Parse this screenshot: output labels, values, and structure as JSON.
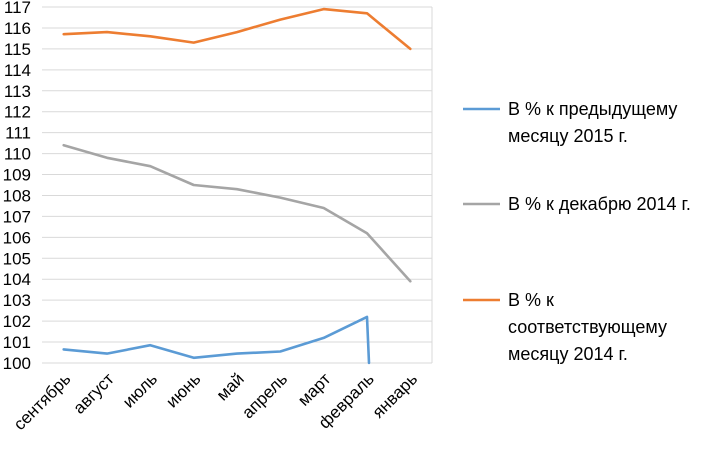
{
  "chart_data": {
    "type": "line",
    "title": "",
    "xlabel": "",
    "ylabel": "",
    "categories": [
      "сентябрь",
      "август",
      "июль",
      "июнь",
      "май",
      "апрель",
      "март",
      "февраль",
      "январь"
    ],
    "ylim": [
      100,
      117
    ],
    "ytick_step": 1,
    "grid": true,
    "legend_position": "right",
    "series": [
      {
        "name_lines": [
          "В % к предыдущему",
          "месяцу 2015 г."
        ],
        "color": "#5b9bd5",
        "values": [
          100.65,
          100.45,
          100.85,
          100.25,
          100.45,
          100.55,
          101.2,
          102.2,
          null
        ],
        "drop_after": {
          "index": 7,
          "to": 100
        }
      },
      {
        "name_lines": [
          "В % к декабрю 2014 г."
        ],
        "color": "#a5a5a5",
        "values": [
          110.4,
          109.8,
          109.4,
          108.5,
          108.3,
          107.9,
          107.4,
          106.2,
          103.9
        ]
      },
      {
        "name_lines": [
          "В % к",
          "соответствующему",
          "месяцу 2014 г."
        ],
        "color": "#ed7d31",
        "values": [
          115.7,
          115.8,
          115.6,
          115.3,
          115.8,
          116.4,
          116.9,
          116.7,
          115.0
        ]
      }
    ]
  }
}
